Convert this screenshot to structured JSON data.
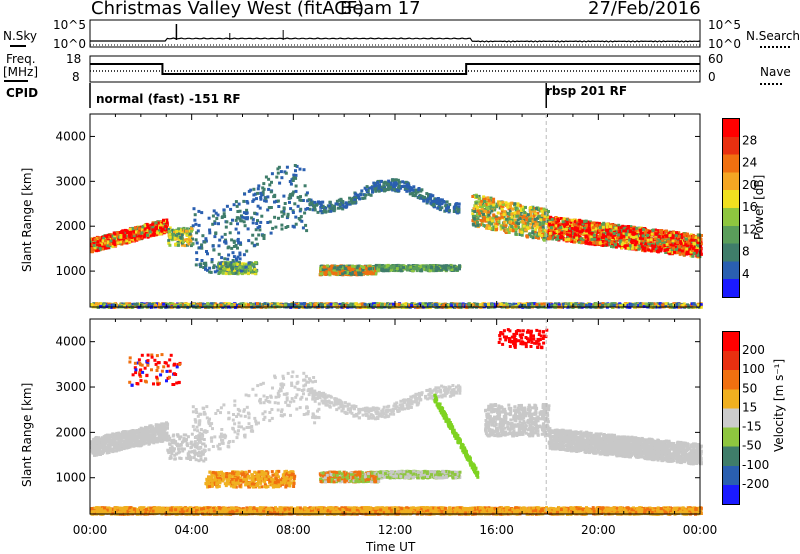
{
  "header": {
    "title": "Christmas Valley West (fitACF)",
    "beam": "Beam 17",
    "date": "27/Feb/2016"
  },
  "top_panels": {
    "nsky_label": "N.Sky",
    "nsky_ticks": [
      "10^5",
      "10^0"
    ],
    "nsearch_label": "N.Search",
    "nsearch_ticks": [
      "10^5",
      "10^0"
    ],
    "freq_label_1": "Freq.",
    "freq_label_2": "[MHz]",
    "freq_ticks": [
      "18",
      "8"
    ],
    "nave_label": "Nave",
    "nave_ticks": [
      "60",
      "0"
    ],
    "cpid_label": "CPID",
    "cpid_segments": [
      "normal (fast) -151 RF",
      "rbsp 201 RF"
    ]
  },
  "chart_data": [
    {
      "type": "heatmap",
      "title": "",
      "xlabel": "",
      "ylabel": "Slant Range [km]",
      "x_ticks": [
        "00:00",
        "04:00",
        "08:00",
        "12:00",
        "16:00",
        "20:00",
        "00:00"
      ],
      "y_ticks": [
        1000,
        2000,
        3000,
        4000
      ],
      "ylim": [
        200,
        4500
      ],
      "xlim_hours": [
        0,
        24
      ],
      "colorbar": {
        "label": "Power [dB]",
        "ticks": [
          4,
          8,
          12,
          16,
          20,
          24,
          28
        ],
        "colors": [
          "#1a1aff",
          "#2a5fb0",
          "#3f7d6a",
          "#5a9e5a",
          "#8ec63f",
          "#f0e020",
          "#f5a623",
          "#f07010",
          "#e83010",
          "#ff0000"
        ]
      }
    },
    {
      "type": "heatmap",
      "title": "",
      "xlabel": "Time UT",
      "ylabel": "Slant Range [km]",
      "x_ticks": [
        "00:00",
        "04:00",
        "08:00",
        "12:00",
        "16:00",
        "20:00",
        "00:00"
      ],
      "y_ticks": [
        1000,
        2000,
        3000,
        4000
      ],
      "ylim": [
        200,
        4500
      ],
      "xlim_hours": [
        0,
        24
      ],
      "colorbar": {
        "label": "Velocity [m s⁻¹]",
        "ticks": [
          200,
          100,
          50,
          15,
          -15,
          -50,
          -100,
          -200
        ],
        "colors": [
          "#1a1aff",
          "#2a5fb0",
          "#3f7d6a",
          "#8ec63f",
          "#cccccc",
          "#f0b020",
          "#f07010",
          "#e83010",
          "#ff0000"
        ]
      }
    }
  ]
}
